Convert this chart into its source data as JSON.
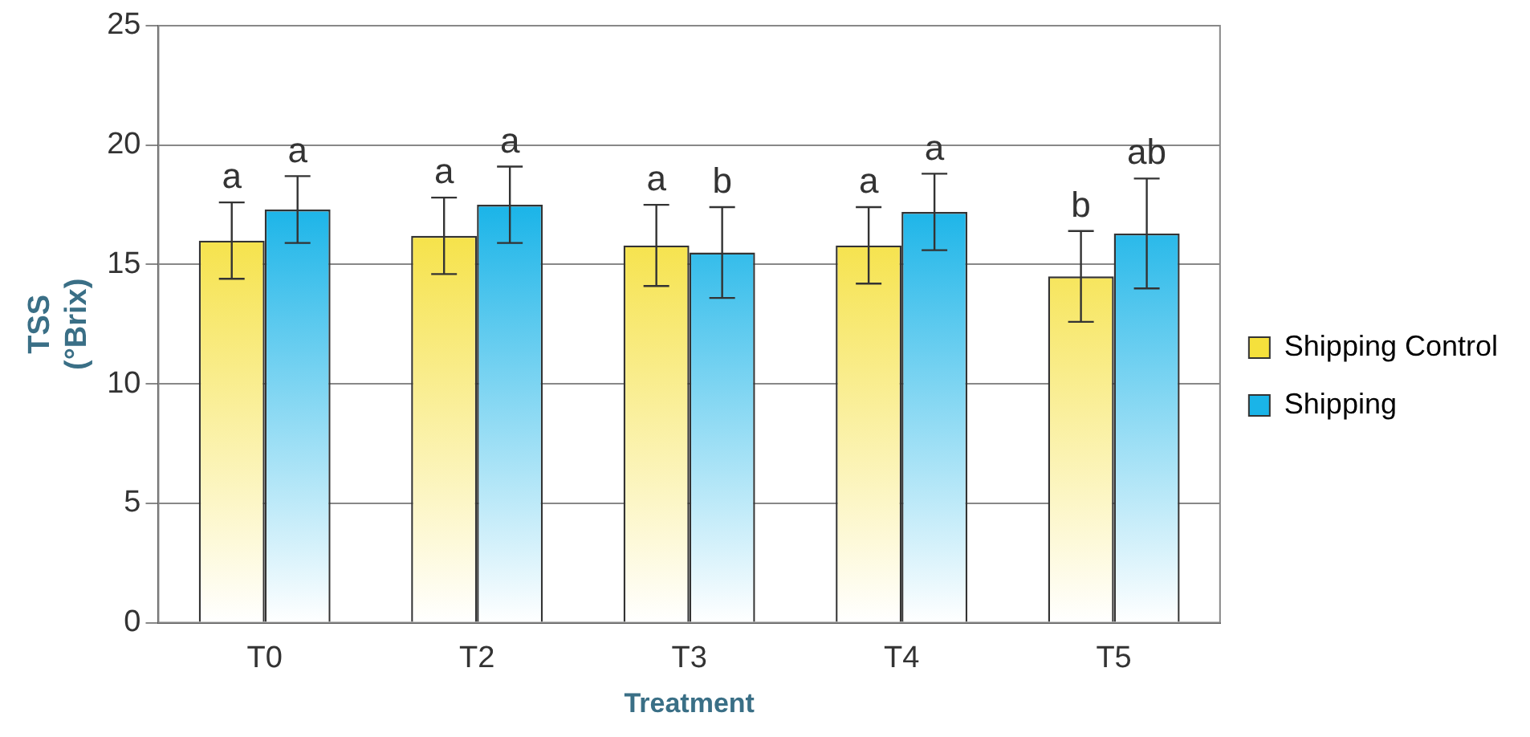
{
  "chart_data": {
    "type": "bar",
    "xlabel": "Treatment",
    "ylabel": "TSS (°Brix)",
    "categories": [
      "T0",
      "T2",
      "T3",
      "T4",
      "T5"
    ],
    "series": [
      {
        "name": "Shipping Control",
        "color": "#f5e03c",
        "values": [
          16.0,
          16.2,
          15.8,
          15.8,
          14.5
        ],
        "errors": [
          1.6,
          1.6,
          1.7,
          1.6,
          1.9
        ]
      },
      {
        "name": "Shipping",
        "color": "#1ab4e8",
        "values": [
          17.3,
          17.5,
          15.5,
          17.2,
          16.3
        ],
        "errors": [
          1.4,
          1.6,
          1.9,
          1.6,
          2.3
        ]
      }
    ],
    "annotations": [
      "a",
      "a",
      "a",
      "a",
      "a",
      "b",
      "a",
      "a",
      "b",
      "ab"
    ],
    "ylim": [
      0,
      25
    ],
    "yticks": [
      0,
      5,
      10,
      15,
      20,
      25
    ],
    "grid": "y",
    "legend": "right"
  }
}
